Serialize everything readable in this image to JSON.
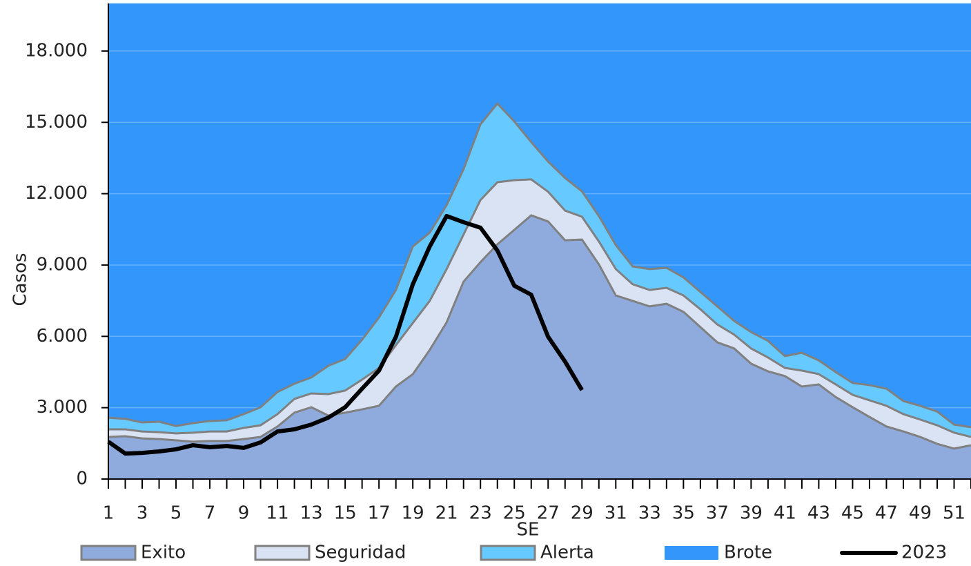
{
  "chart_data": {
    "type": "area",
    "x_label": "SE",
    "y_label": "Casos",
    "x": [
      1,
      2,
      3,
      4,
      5,
      6,
      7,
      8,
      9,
      10,
      11,
      12,
      13,
      14,
      15,
      16,
      17,
      18,
      19,
      20,
      21,
      22,
      23,
      24,
      25,
      26,
      27,
      28,
      29,
      30,
      31,
      32,
      33,
      34,
      35,
      36,
      37,
      38,
      39,
      40,
      41,
      42,
      43,
      44,
      45,
      46,
      47,
      48,
      49,
      50,
      51,
      52
    ],
    "xlim": [
      1,
      52
    ],
    "xticks": [
      1,
      3,
      5,
      7,
      9,
      11,
      13,
      15,
      17,
      19,
      21,
      23,
      25,
      27,
      29,
      31,
      33,
      35,
      37,
      39,
      41,
      43,
      45,
      47,
      49,
      51
    ],
    "ylim": [
      0,
      20000
    ],
    "yticks": [
      0,
      {
        "value": 3000,
        "label": "3.000"
      },
      {
        "value": 6000,
        "label": "6.000"
      },
      {
        "value": 9000,
        "label": "9.000"
      },
      {
        "value": 12000,
        "label": "12.000"
      },
      {
        "value": 15000,
        "label": "15.000"
      },
      {
        "value": 18000,
        "label": "18.000"
      }
    ],
    "grid": true,
    "legend": "bottom",
    "series": [
      {
        "name": "Exito",
        "color": "#8faadc",
        "kind": "area",
        "values": [
          1770,
          1800,
          1710,
          1680,
          1630,
          1570,
          1600,
          1600,
          1680,
          1770,
          2210,
          2790,
          3020,
          2670,
          2790,
          2930,
          3080,
          3890,
          4410,
          5430,
          6590,
          8300,
          9120,
          9870,
          10480,
          11090,
          10830,
          10040,
          10070,
          9030,
          7720,
          7490,
          7260,
          7370,
          7030,
          6390,
          5750,
          5490,
          4850,
          4530,
          4330,
          3890,
          3980,
          3450,
          3020,
          2610,
          2210,
          2000,
          1770,
          1480,
          1280,
          1420
        ]
      },
      {
        "name": "Seguridad",
        "color": "#dae3f3",
        "kind": "area",
        "values": [
          2090,
          2090,
          2000,
          1970,
          1920,
          1950,
          2000,
          2000,
          2150,
          2260,
          2730,
          3370,
          3600,
          3570,
          3720,
          4180,
          4670,
          5630,
          6560,
          7490,
          8830,
          10280,
          11730,
          12480,
          12570,
          12600,
          12080,
          11290,
          11030,
          9990,
          8830,
          8190,
          7950,
          8040,
          7720,
          7140,
          6500,
          6070,
          5490,
          5110,
          4670,
          4560,
          4410,
          3980,
          3540,
          3310,
          3080,
          2730,
          2500,
          2260,
          1950,
          1770
        ]
      },
      {
        "name": "Alerta",
        "color": "#66c9ff",
        "kind": "area",
        "values": [
          2580,
          2530,
          2380,
          2410,
          2230,
          2350,
          2440,
          2470,
          2730,
          3020,
          3660,
          4010,
          4270,
          4760,
          5050,
          5860,
          6790,
          7950,
          9780,
          10360,
          11520,
          13030,
          14920,
          15790,
          15040,
          14170,
          13350,
          12660,
          12100,
          11060,
          9840,
          8940,
          8830,
          8880,
          8480,
          7870,
          7260,
          6650,
          6180,
          5810,
          5170,
          5310,
          4990,
          4500,
          4040,
          3950,
          3800,
          3280,
          3080,
          2840,
          2290,
          2180
        ]
      },
      {
        "name": "Brote",
        "color": "#3396fb",
        "kind": "background"
      },
      {
        "name": "2023",
        "color": "#000000",
        "kind": "line",
        "values": [
          1570,
          1070,
          1100,
          1160,
          1250,
          1420,
          1340,
          1390,
          1310,
          1540,
          2000,
          2090,
          2290,
          2580,
          3020,
          3800,
          4560,
          5980,
          8190,
          9780,
          11060,
          10800,
          10570,
          9610,
          8130,
          7750,
          5980,
          4940,
          3740,
          null,
          null,
          null,
          null,
          null,
          null,
          null,
          null,
          null,
          null,
          null,
          null,
          null,
          null,
          null,
          null,
          null,
          null,
          null,
          null,
          null,
          null,
          null
        ]
      }
    ]
  }
}
